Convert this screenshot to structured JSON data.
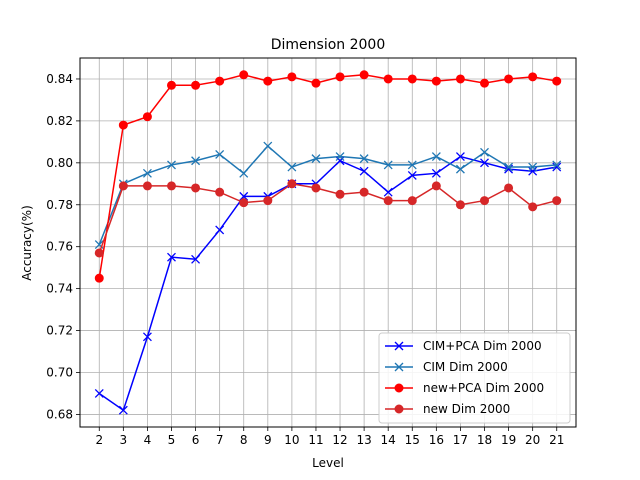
{
  "chart_data": {
    "type": "line",
    "title": "Dimension 2000",
    "xlabel": "Level",
    "ylabel": "Accuracy(%)",
    "x": [
      2,
      3,
      4,
      5,
      6,
      7,
      8,
      9,
      10,
      11,
      12,
      13,
      14,
      15,
      16,
      17,
      18,
      19,
      20,
      21
    ],
    "xlim": [
      1.2,
      21.8
    ],
    "ylim": [
      0.674,
      0.85
    ],
    "yticks": [
      0.68,
      0.7,
      0.72,
      0.74,
      0.76,
      0.78,
      0.8,
      0.82,
      0.84
    ],
    "ytick_labels": [
      "0.68",
      "0.70",
      "0.72",
      "0.74",
      "0.76",
      "0.78",
      "0.80",
      "0.82",
      "0.84"
    ],
    "grid": true,
    "legend_position": "lower-right",
    "series": [
      {
        "name": "CIM+PCA Dim 2000",
        "color": "#0000ff",
        "marker": "x",
        "values": [
          0.69,
          0.682,
          0.717,
          0.755,
          0.754,
          0.768,
          0.784,
          0.784,
          0.79,
          0.79,
          0.801,
          0.796,
          0.786,
          0.794,
          0.795,
          0.803,
          0.8,
          0.797,
          0.796,
          0.798
        ]
      },
      {
        "name": "CIM Dim 2000",
        "color": "#1f77b4",
        "marker": "x",
        "values": [
          0.761,
          0.79,
          0.795,
          0.799,
          0.801,
          0.804,
          0.795,
          0.808,
          0.798,
          0.802,
          0.803,
          0.802,
          0.799,
          0.799,
          0.803,
          0.797,
          0.805,
          0.798,
          0.798,
          0.799
        ]
      },
      {
        "name": "new+PCA Dim 2000",
        "color": "#ff0000",
        "marker": "o",
        "values": [
          0.745,
          0.818,
          0.822,
          0.837,
          0.837,
          0.839,
          0.842,
          0.839,
          0.841,
          0.838,
          0.841,
          0.842,
          0.84,
          0.84,
          0.839,
          0.84,
          0.838,
          0.84,
          0.841,
          0.839
        ]
      },
      {
        "name": "new Dim 2000",
        "color": "#d62728",
        "marker": "o",
        "values": [
          0.757,
          0.789,
          0.789,
          0.789,
          0.788,
          0.786,
          0.781,
          0.782,
          0.79,
          0.788,
          0.785,
          0.786,
          0.782,
          0.782,
          0.789,
          0.78,
          0.782,
          0.788,
          0.779,
          0.782
        ]
      }
    ]
  }
}
